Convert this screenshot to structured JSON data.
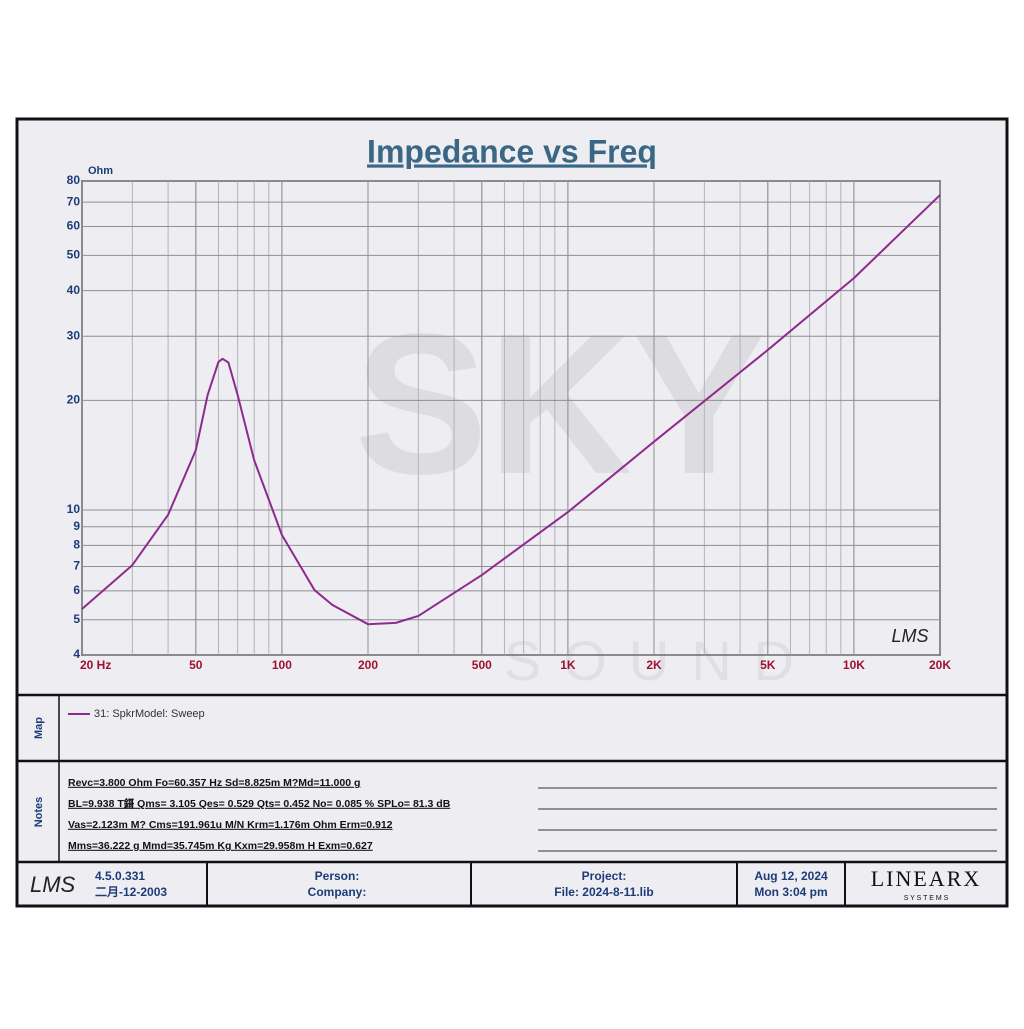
{
  "chart_data": {
    "type": "line",
    "title": "Impedance vs Freq",
    "y_label": "Ohm",
    "x": [
      20,
      30,
      40,
      50,
      55,
      60,
      62,
      65,
      70,
      80,
      100,
      130,
      150,
      200,
      250,
      300,
      500,
      1000,
      2000,
      5000,
      10000,
      20000
    ],
    "series": [
      {
        "name": "31: SpkrModel: Sweep",
        "color": "#8e2a8e",
        "values": [
          5.35,
          7.06,
          9.7,
          14.6,
          20.7,
          25.5,
          26,
          25.4,
          20.7,
          13.7,
          8.54,
          6.03,
          5.49,
          4.86,
          4.9,
          5.12,
          6.63,
          9.87,
          15.4,
          27.5,
          43.3,
          73.2
        ]
      }
    ],
    "xlim": [
      20,
      20000
    ],
    "ylim": [
      4,
      80
    ],
    "xticks": [
      {
        "value": 20,
        "label": "20  Hz"
      },
      50,
      100,
      200,
      500,
      {
        "value": 1000,
        "label": "1K"
      },
      {
        "value": 2000,
        "label": "2K"
      },
      {
        "value": 5000,
        "label": "5K"
      },
      {
        "value": 10000,
        "label": "10K"
      },
      {
        "value": 20000,
        "label": "20K"
      }
    ],
    "yticks": [
      4,
      5,
      6,
      7,
      8,
      9,
      10,
      20,
      30,
      40,
      50,
      60,
      70,
      80
    ],
    "x_log": true,
    "y_log": true,
    "grid": true,
    "minor_grid": true,
    "watermark": {
      "main": "SKY",
      "sub": "SOUND"
    },
    "plot_mark": "LMS"
  },
  "map": {
    "label": "Map"
  },
  "notes": {
    "label": "Notes",
    "lines": [
      "Revc=3.800 Ohm  Fo=60.357 Hz  Sd=8.825m M?Md=11.000 g",
      "BL=9.938 T鎶  Qms= 3.105  Qes= 0.529  Qts= 0.452  No= 0.085 %  SPLo= 81.3 dB",
      "Vas=2.123m M? Cms=191.961u M/N  Krm=1.176m Ohm  Erm=0.912",
      "Mms=36.222 g  Mmd=35.745m Kg  Kxm=29.958m H  Exm=0.627"
    ]
  },
  "footer": {
    "logo": "LMS",
    "version": "4.5.0.331",
    "build_date": "二月-12-2003",
    "person": "Person:",
    "company": "Company:",
    "project": "Project:",
    "file": "File: 2024-8-11.lib",
    "date": "Aug 12, 2024",
    "time": "Mon  3:04 pm",
    "brand": "LINEARX",
    "brand_sub": "S Y S T E M S"
  }
}
